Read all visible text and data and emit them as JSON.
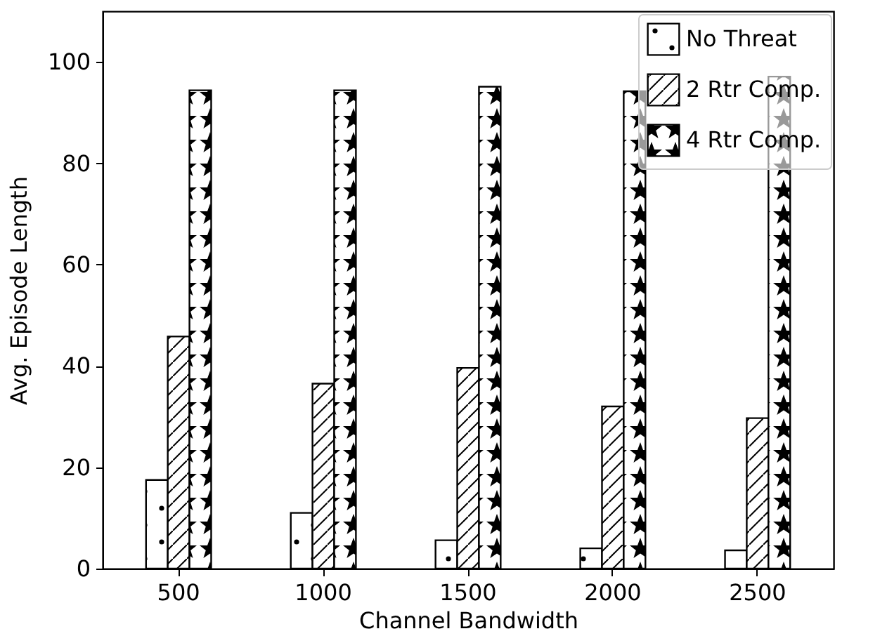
{
  "chart_data": {
    "type": "bar",
    "xlabel": "Channel Bandwidth",
    "ylabel": "Avg. Episode Length",
    "categories": [
      "500",
      "1000",
      "1500",
      "2000",
      "2500"
    ],
    "series": [
      {
        "name": "No Threat",
        "color": "#000000",
        "values": [
          17.5,
          11.0,
          5.6,
          4.0,
          3.6
        ]
      },
      {
        "name": "2 Rtr Comp.",
        "color": "#000000",
        "values": [
          45.8,
          36.5,
          39.6,
          32.0,
          29.7
        ]
      },
      {
        "name": "4 Rtr Comp.",
        "color": "#000000",
        "values": [
          94.4,
          94.4,
          95.1,
          94.2,
          97.1
        ]
      }
    ],
    "ylim": [
      0,
      110
    ],
    "yticks": [
      0,
      20,
      40,
      60,
      80,
      100
    ],
    "grid": false,
    "legend": "top right"
  }
}
